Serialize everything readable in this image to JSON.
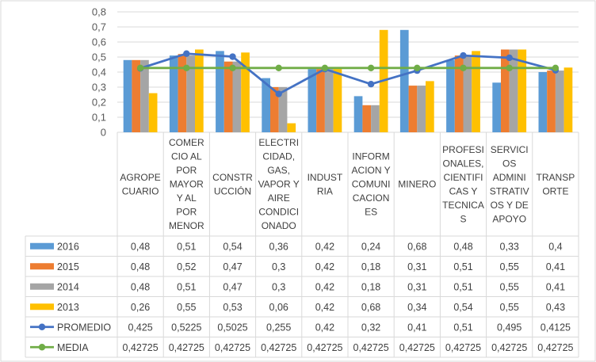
{
  "chart_data": {
    "type": "bar",
    "categories": [
      [
        "AGROPE",
        "CUARIO"
      ],
      [
        "COMER",
        "CIO AL",
        "POR",
        "MAYOR",
        "Y AL",
        "POR",
        "MENOR"
      ],
      [
        "CONSTR",
        "UCCIÓN"
      ],
      [
        "ELECTRI",
        "CIDAD,",
        "GAS,",
        "VAPOR Y",
        "AIRE",
        "CONDICI",
        "ONADO"
      ],
      [
        "INDUST",
        "RIA"
      ],
      [
        "INFORM",
        "ACION Y",
        "COMUNI",
        "CACION",
        "ES"
      ],
      [
        "MINERO"
      ],
      [
        "PROFESI",
        "ONALES,",
        "CIENTIFI",
        "CAS Y",
        "TECNICA",
        "S"
      ],
      [
        "SERVICI",
        "OS",
        "ADMINI",
        "STRATIV",
        "OS Y DE",
        "APOYO"
      ],
      [
        "TRANSP",
        "ORTE"
      ]
    ],
    "series": [
      {
        "name": "2016",
        "kind": "bar",
        "color": "#5B9BD5",
        "values": [
          0.48,
          0.51,
          0.54,
          0.36,
          0.42,
          0.24,
          0.68,
          0.48,
          0.33,
          0.4
        ],
        "labels": [
          "0,48",
          "0,51",
          "0,54",
          "0,36",
          "0,42",
          "0,24",
          "0,68",
          "0,48",
          "0,33",
          "0,4"
        ]
      },
      {
        "name": "2015",
        "kind": "bar",
        "color": "#ED7D31",
        "values": [
          0.48,
          0.52,
          0.47,
          0.3,
          0.42,
          0.18,
          0.31,
          0.51,
          0.55,
          0.41
        ],
        "labels": [
          "0,48",
          "0,52",
          "0,47",
          "0,3",
          "0,42",
          "0,18",
          "0,31",
          "0,51",
          "0,55",
          "0,41"
        ]
      },
      {
        "name": "2014",
        "kind": "bar",
        "color": "#A5A5A5",
        "values": [
          0.48,
          0.51,
          0.47,
          0.3,
          0.42,
          0.18,
          0.31,
          0.51,
          0.55,
          0.41
        ],
        "labels": [
          "0,48",
          "0,51",
          "0,47",
          "0,3",
          "0,42",
          "0,18",
          "0,31",
          "0,51",
          "0,55",
          "0,41"
        ]
      },
      {
        "name": "2013",
        "kind": "bar",
        "color": "#FFC000",
        "values": [
          0.26,
          0.55,
          0.53,
          0.06,
          0.42,
          0.68,
          0.34,
          0.54,
          0.55,
          0.43
        ],
        "labels": [
          "0,26",
          "0,55",
          "0,53",
          "0,06",
          "0,42",
          "0,68",
          "0,34",
          "0,54",
          "0,55",
          "0,43"
        ]
      },
      {
        "name": "PROMEDIO",
        "kind": "line",
        "color": "#4472C4",
        "values": [
          0.425,
          0.5225,
          0.5025,
          0.255,
          0.42,
          0.32,
          0.41,
          0.51,
          0.495,
          0.4125
        ],
        "labels": [
          "0,425",
          "0,5225",
          "0,5025",
          "0,255",
          "0,42",
          "0,32",
          "0,41",
          "0,51",
          "0,495",
          "0,4125"
        ]
      },
      {
        "name": "MEDIA",
        "kind": "line",
        "color": "#70AD47",
        "values": [
          0.42725,
          0.42725,
          0.42725,
          0.42725,
          0.42725,
          0.42725,
          0.42725,
          0.42725,
          0.42725,
          0.42725
        ],
        "labels": [
          "0,42725",
          "0,42725",
          "0,42725",
          "0,42725",
          "0,42725",
          "0,42725",
          "0,42725",
          "0,42725",
          "0,42725",
          "0,42725"
        ]
      }
    ],
    "ylim": [
      0,
      0.8
    ],
    "yticks": [
      0,
      0.1,
      0.2,
      0.3,
      0.4,
      0.5,
      0.6,
      0.7,
      0.8
    ],
    "ytick_labels": [
      "0",
      "0,1",
      "0,2",
      "0,3",
      "0,4",
      "0,5",
      "0,6",
      "0,7",
      "0,8"
    ],
    "grid": true,
    "legend": "data-table",
    "colors": {
      "axis": "#D9D9D9",
      "border": "#BFBFBF",
      "text": "#404040"
    }
  }
}
